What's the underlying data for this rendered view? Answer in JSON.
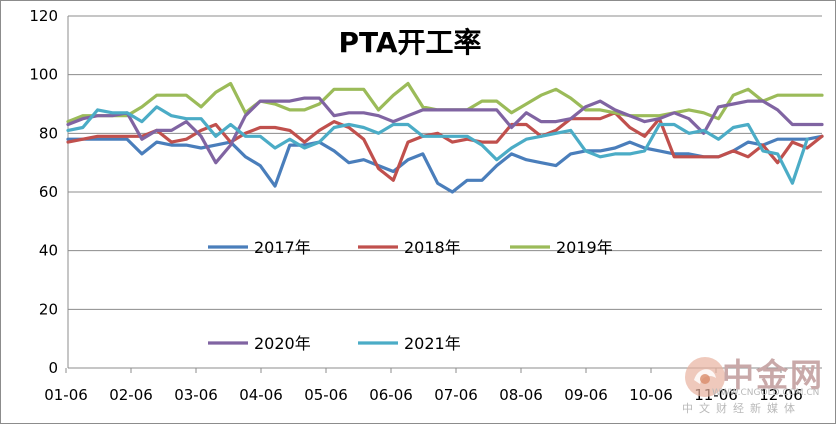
{
  "chart_data": {
    "type": "line",
    "title": "PTA开工率",
    "xlabel": "",
    "ylabel": "",
    "ylim": [
      0,
      120
    ],
    "yticks": [
      0,
      20,
      40,
      60,
      80,
      100,
      120
    ],
    "xticks": [
      "01-06",
      "02-06",
      "03-06",
      "04-06",
      "05-06",
      "06-06",
      "07-06",
      "08-06",
      "09-06",
      "10-06",
      "11-06",
      "12-06"
    ],
    "x_points_per_series": 52,
    "grid": "horizontal",
    "series": [
      {
        "name": "2017年",
        "color": "#4a7ebb",
        "values": [
          78,
          78,
          78,
          78,
          78,
          73,
          77,
          76,
          76,
          75,
          76,
          77,
          72,
          69,
          62,
          76,
          76,
          77,
          74,
          70,
          71,
          69,
          67,
          71,
          73,
          63,
          60,
          64,
          64,
          69,
          73,
          71,
          70,
          69,
          73,
          74,
          74,
          75,
          77,
          75,
          74,
          73,
          73,
          72,
          72,
          74,
          77,
          76,
          78,
          78,
          78,
          79
        ]
      },
      {
        "name": "2018年",
        "color": "#c0504d",
        "values": [
          77,
          78,
          79,
          79,
          79,
          79,
          81,
          77,
          78,
          81,
          83,
          77,
          80,
          82,
          82,
          81,
          77,
          81,
          84,
          82,
          78,
          68,
          64,
          77,
          79,
          80,
          77,
          78,
          77,
          77,
          83,
          83,
          79,
          81,
          85,
          85,
          85,
          87,
          82,
          79,
          85,
          72,
          72,
          72,
          72,
          74,
          72,
          76,
          70,
          77,
          75,
          79
        ]
      },
      {
        "name": "2019年",
        "color": "#9bbb59",
        "values": [
          84,
          86,
          86,
          86,
          86,
          89,
          93,
          93,
          93,
          89,
          94,
          97,
          87,
          91,
          90,
          88,
          88,
          90,
          95,
          95,
          95,
          88,
          93,
          97,
          89,
          88,
          88,
          88,
          91,
          91,
          87,
          90,
          93,
          95,
          92,
          88,
          88,
          87,
          86,
          86,
          86,
          87,
          88,
          87,
          85,
          93,
          95,
          91,
          93,
          93,
          93,
          93
        ]
      },
      {
        "name": "2020年",
        "color": "#8064a2",
        "values": [
          83,
          85,
          86,
          86,
          87,
          78,
          81,
          81,
          84,
          79,
          70,
          76,
          86,
          91,
          91,
          91,
          92,
          92,
          86,
          87,
          87,
          86,
          84,
          86,
          88,
          88,
          88,
          88,
          88,
          88,
          82,
          87,
          84,
          84,
          85,
          89,
          91,
          88,
          86,
          84,
          85,
          87,
          85,
          80,
          89,
          90,
          91,
          91,
          88,
          83,
          83,
          83
        ]
      },
      {
        "name": "2021年",
        "color": "#4bacc6",
        "values": [
          81,
          82,
          88,
          87,
          87,
          84,
          89,
          86,
          85,
          85,
          79,
          83,
          79,
          79,
          75,
          78,
          75,
          77,
          82,
          83,
          82,
          80,
          83,
          83,
          79,
          79,
          79,
          79,
          76,
          71,
          75,
          78,
          79,
          80,
          81,
          74,
          72,
          73,
          73,
          74,
          83,
          83,
          80,
          81,
          78,
          82,
          83,
          74,
          73,
          63,
          78
        ]
      }
    ]
  },
  "watermark": {
    "logo_text": "中金网",
    "url_text": "WWW.CNGOLD.COM.CN",
    "sub_text": "中文财经新媒体"
  }
}
